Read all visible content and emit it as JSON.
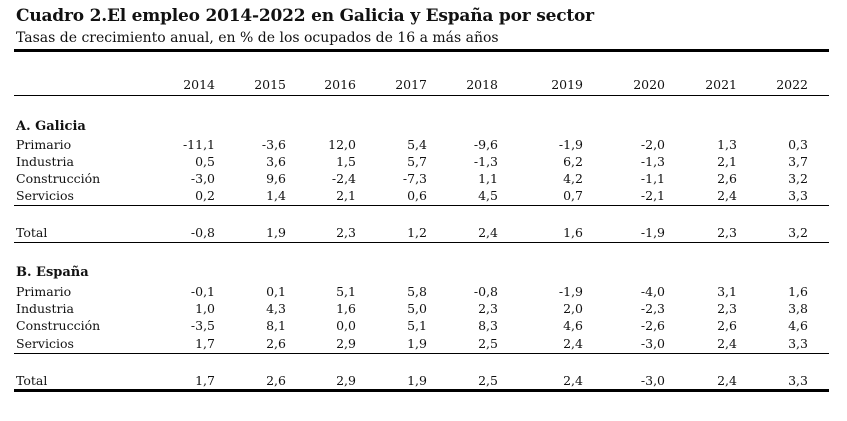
{
  "title": "Cuadro 2.El empleo 2014-2022 en Galicia y España por sector",
  "subtitle": "Tasas de crecimiento anual, en % de los ocupados de 16 a más años",
  "years": [
    "2014",
    "2015",
    "2016",
    "2017",
    "2018",
    "2019",
    "2020",
    "2021",
    "2022"
  ],
  "galicia": {
    "heading": "A. Galicia",
    "rows": [
      {
        "label": "Primario",
        "values": [
          "-11,1",
          "-3,6",
          "12,0",
          "5,4",
          "-9,6",
          "-1,9",
          "-2,0",
          "1,3",
          "0,3"
        ]
      },
      {
        "label": "Industria",
        "values": [
          "0,5",
          "3,6",
          "1,5",
          "5,7",
          "-1,3",
          "6,2",
          "-1,3",
          "2,1",
          "3,7"
        ]
      },
      {
        "label": "Construcción",
        "values": [
          "-3,0",
          "9,6",
          "-2,4",
          "-7,3",
          "1,1",
          "4,2",
          "-1,1",
          "2,6",
          "3,2"
        ]
      },
      {
        "label": "Servicios",
        "values": [
          "0,2",
          "1,4",
          "2,1",
          "0,6",
          "4,5",
          "0,7",
          "-2,1",
          "2,4",
          "3,3"
        ]
      }
    ],
    "total": {
      "label": "Total",
      "values": [
        "-0,8",
        "1,9",
        "2,3",
        "1,2",
        "2,4",
        "1,6",
        "-1,9",
        "2,3",
        "3,2"
      ]
    }
  },
  "espana": {
    "heading": "B. España",
    "rows": [
      {
        "label": "Primario",
        "values": [
          "-0,1",
          "0,1",
          "5,1",
          "5,8",
          "-0,8",
          "-1,9",
          "-4,0",
          "3,1",
          "1,6"
        ]
      },
      {
        "label": "Industria",
        "values": [
          "1,0",
          "4,3",
          "1,6",
          "5,0",
          "2,3",
          "2,0",
          "-2,3",
          "2,3",
          "3,8"
        ]
      },
      {
        "label": "Construcción",
        "values": [
          "-3,5",
          "8,1",
          "0,0",
          "5,1",
          "8,3",
          "4,6",
          "-2,6",
          "2,6",
          "4,6"
        ]
      },
      {
        "label": "Servicios",
        "values": [
          "1,7",
          "2,6",
          "2,9",
          "1,9",
          "2,5",
          "2,4",
          "-3,0",
          "2,4",
          "3,3"
        ]
      }
    ],
    "total": {
      "label": "Total",
      "values": [
        "1,7",
        "2,6",
        "2,9",
        "1,9",
        "2,5",
        "2,4",
        "-3,0",
        "2,4",
        "3,3"
      ]
    }
  }
}
